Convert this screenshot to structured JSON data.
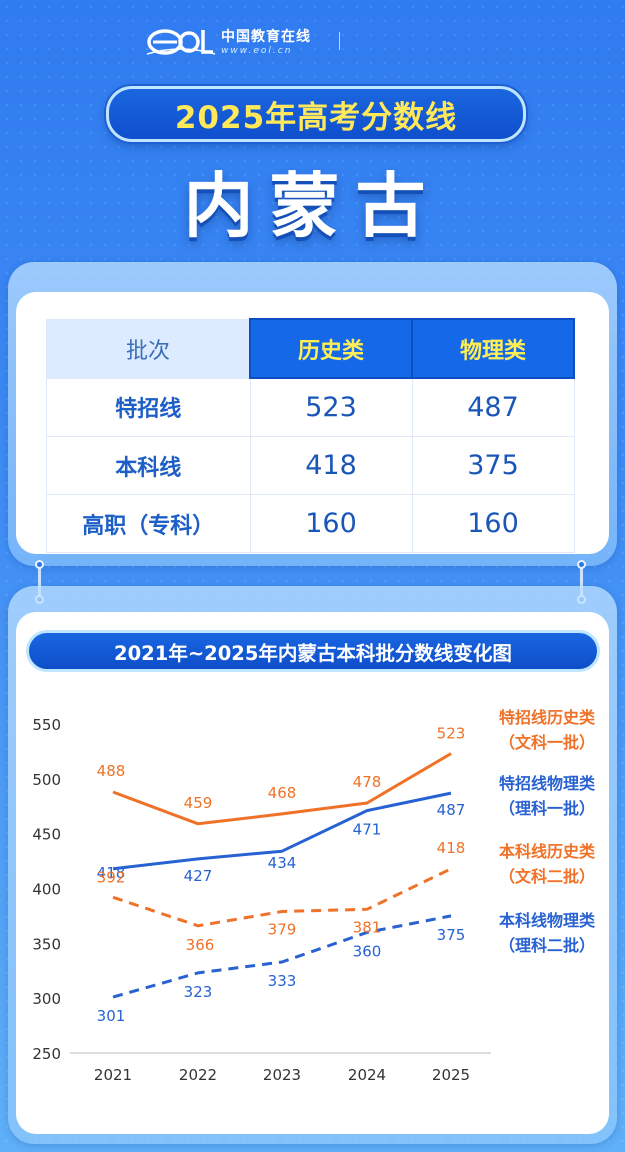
{
  "header": {
    "logo_cn": "中国教育在线",
    "logo_url": "www.eol.cn",
    "title": "2025年高考分数线",
    "region": "内蒙古"
  },
  "table": {
    "headers": [
      "批次",
      "历史类",
      "物理类"
    ],
    "rows": [
      {
        "label": "特招线",
        "history": "523",
        "physics": "487"
      },
      {
        "label": "本科线",
        "history": "418",
        "physics": "375"
      },
      {
        "label": "高职（专科）",
        "history": "160",
        "physics": "160"
      }
    ]
  },
  "colors": {
    "history": "#f07228",
    "physics": "#2862d2",
    "accent": "#ffee55"
  },
  "chart_data": {
    "type": "line",
    "title": "2021年~2025年内蒙古本科批分数线变化图",
    "x": [
      "2021",
      "2022",
      "2023",
      "2024",
      "2025"
    ],
    "yticks": [
      "550",
      "500",
      "450",
      "400",
      "350",
      "300",
      "250"
    ],
    "ylim": [
      250,
      550
    ],
    "grid": false,
    "series": [
      {
        "name_line1": "特招线历史类",
        "name_line2": "（文科一批）",
        "values": [
          488,
          459,
          468,
          478,
          523
        ],
        "color": "#f07228",
        "dashed": false
      },
      {
        "name_line1": "特招线物理类",
        "name_line2": "（理科一批）",
        "values": [
          418,
          427,
          434,
          471,
          487
        ],
        "color": "#2862d2",
        "dashed": false
      },
      {
        "name_line1": "本科线历史类",
        "name_line2": "（文科二批）",
        "values": [
          392,
          366,
          379,
          381,
          418
        ],
        "color": "#f07228",
        "dashed": true
      },
      {
        "name_line1": "本科线物理类",
        "name_line2": "（理科二批）",
        "values": [
          301,
          323,
          333,
          360,
          375
        ],
        "color": "#2862d2",
        "dashed": true
      }
    ]
  }
}
